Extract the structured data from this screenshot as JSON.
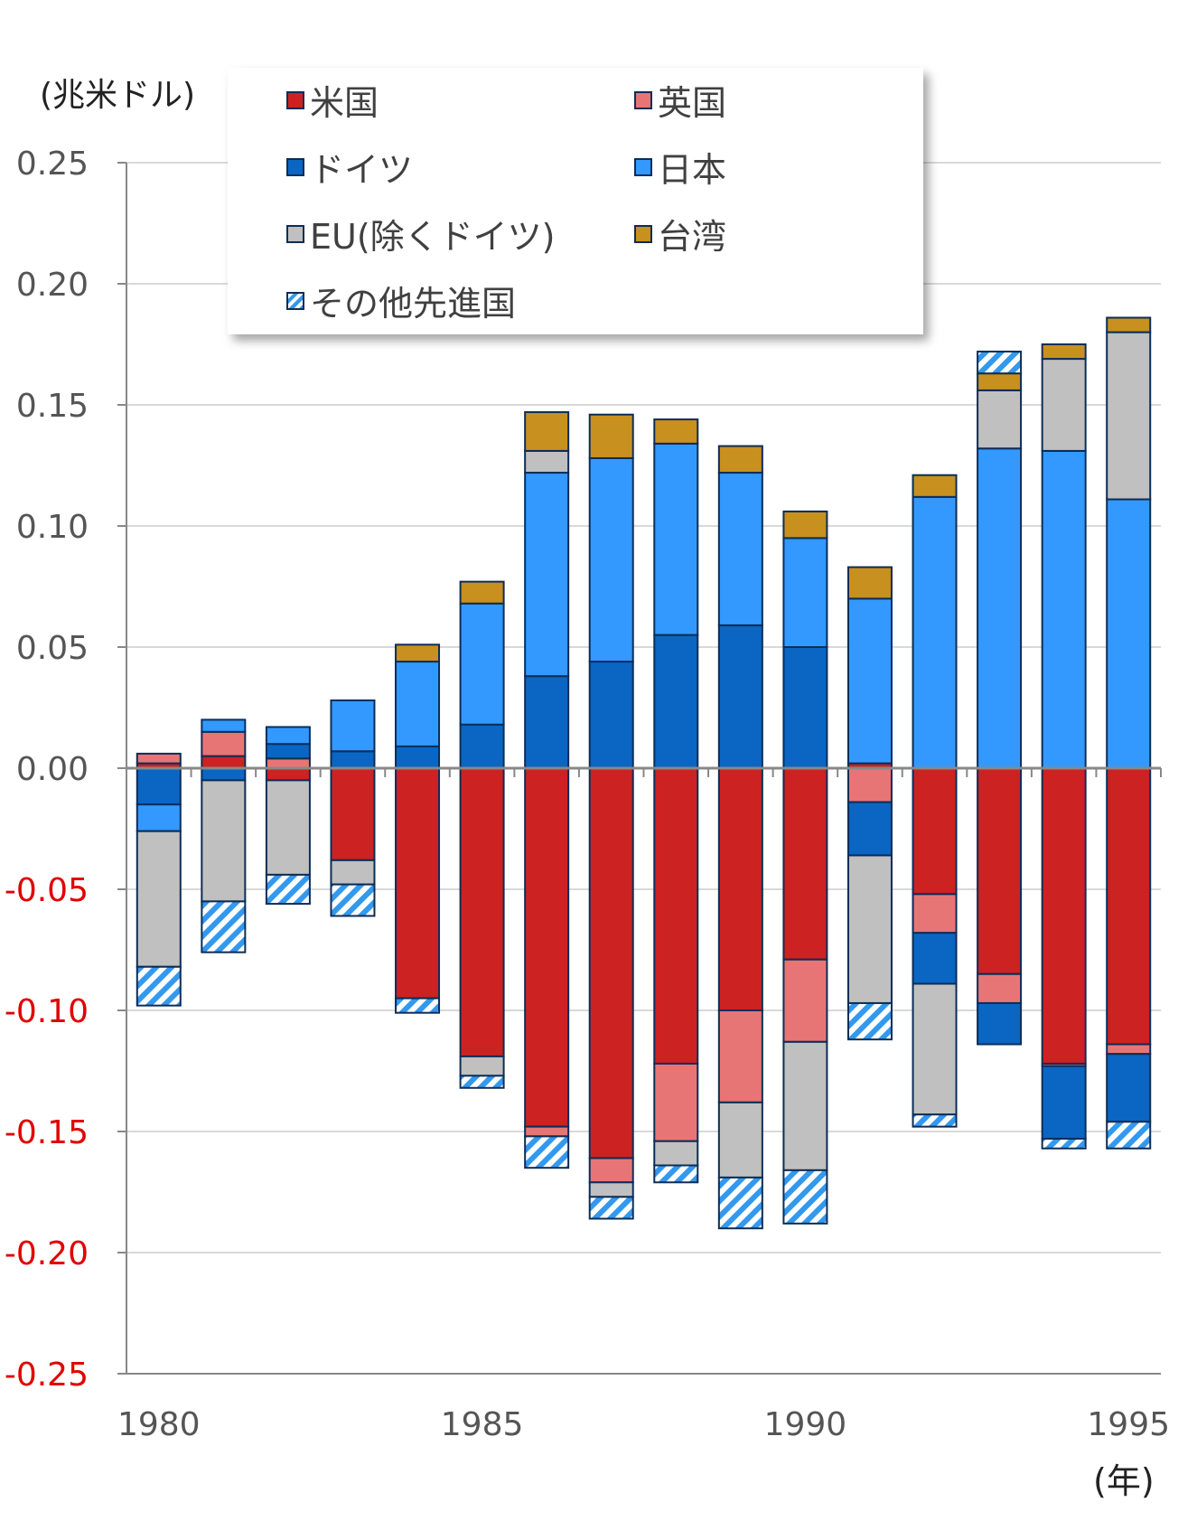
{
  "colors": {
    "us": "#cc2222",
    "uk": "#e87575",
    "germany": "#0a66c2",
    "japan": "#3399ff",
    "eu": "#c0c0c0",
    "taiwan": "#c8901e",
    "others": "#3399ee",
    "outline": "#0c2d57",
    "negative_tick": "#e00000",
    "positive_tick": "#555555",
    "grid": "#d9d9d9"
  },
  "chart_data": {
    "type": "bar",
    "stacked": true,
    "unit_label": "(兆米ドル)",
    "xlabel": "(年)",
    "ylim": [
      -0.25,
      0.25
    ],
    "y_ticks": [
      "0.25",
      "0.20",
      "0.15",
      "0.10",
      "0.05",
      "0.00",
      "-0.05",
      "-0.10",
      "-0.15",
      "-0.20",
      "-0.25"
    ],
    "x_ticks": [
      "1980",
      "1985",
      "1990",
      "1995"
    ],
    "grid": true,
    "legend_position": "top",
    "categories": [
      "1980",
      "1981",
      "1982",
      "1983",
      "1984",
      "1985",
      "1986",
      "1987",
      "1988",
      "1989",
      "1990",
      "1991",
      "1992",
      "1993",
      "1994",
      "1995"
    ],
    "series": [
      {
        "key": "us",
        "name": "米国",
        "color": "#cc2222",
        "hatch": false,
        "values": [
          0.002,
          0.005,
          -0.005,
          -0.038,
          -0.095,
          -0.119,
          -0.148,
          -0.161,
          -0.122,
          -0.1,
          -0.079,
          0.002,
          -0.052,
          -0.085,
          -0.122,
          -0.114
        ]
      },
      {
        "key": "uk",
        "name": "英国",
        "color": "#e87575",
        "hatch": false,
        "values": [
          0.004,
          0.01,
          0.004,
          0.0,
          0.0,
          0.0,
          -0.004,
          -0.01,
          -0.032,
          -0.038,
          -0.034,
          -0.014,
          -0.016,
          -0.012,
          -0.001,
          -0.004
        ]
      },
      {
        "key": "germany",
        "name": "ドイツ",
        "color": "#0a66c2",
        "hatch": false,
        "values": [
          -0.015,
          -0.005,
          0.006,
          0.007,
          0.009,
          0.018,
          0.038,
          0.044,
          0.055,
          0.059,
          0.05,
          -0.022,
          -0.021,
          -0.017,
          -0.03,
          -0.028
        ]
      },
      {
        "key": "japan",
        "name": "日本",
        "color": "#3399ff",
        "hatch": false,
        "values": [
          -0.011,
          0.005,
          0.007,
          0.021,
          0.035,
          0.05,
          0.084,
          0.084,
          0.079,
          0.063,
          0.045,
          0.068,
          0.112,
          0.132,
          0.131,
          0.111
        ]
      },
      {
        "key": "eu",
        "name": "EU(除くドイツ)",
        "color": "#c0c0c0",
        "hatch": false,
        "values": [
          -0.056,
          -0.05,
          -0.039,
          -0.01,
          0.0,
          -0.008,
          0.009,
          -0.006,
          -0.01,
          -0.031,
          -0.053,
          -0.061,
          -0.054,
          0.024,
          0.038,
          0.069
        ]
      },
      {
        "key": "taiwan",
        "name": "台湾",
        "color": "#c8901e",
        "hatch": false,
        "values": [
          0.0,
          0.0,
          0.0,
          0.0,
          0.007,
          0.009,
          0.016,
          0.018,
          0.01,
          0.011,
          0.011,
          0.013,
          0.009,
          0.007,
          0.006,
          0.006
        ]
      },
      {
        "key": "others",
        "name": "その他先進国",
        "color": "#3399ee",
        "hatch": true,
        "values": [
          -0.016,
          -0.021,
          -0.012,
          -0.013,
          -0.006,
          -0.005,
          -0.013,
          -0.009,
          -0.007,
          -0.021,
          -0.022,
          -0.015,
          -0.005,
          0.009,
          -0.004,
          -0.011
        ]
      }
    ]
  }
}
